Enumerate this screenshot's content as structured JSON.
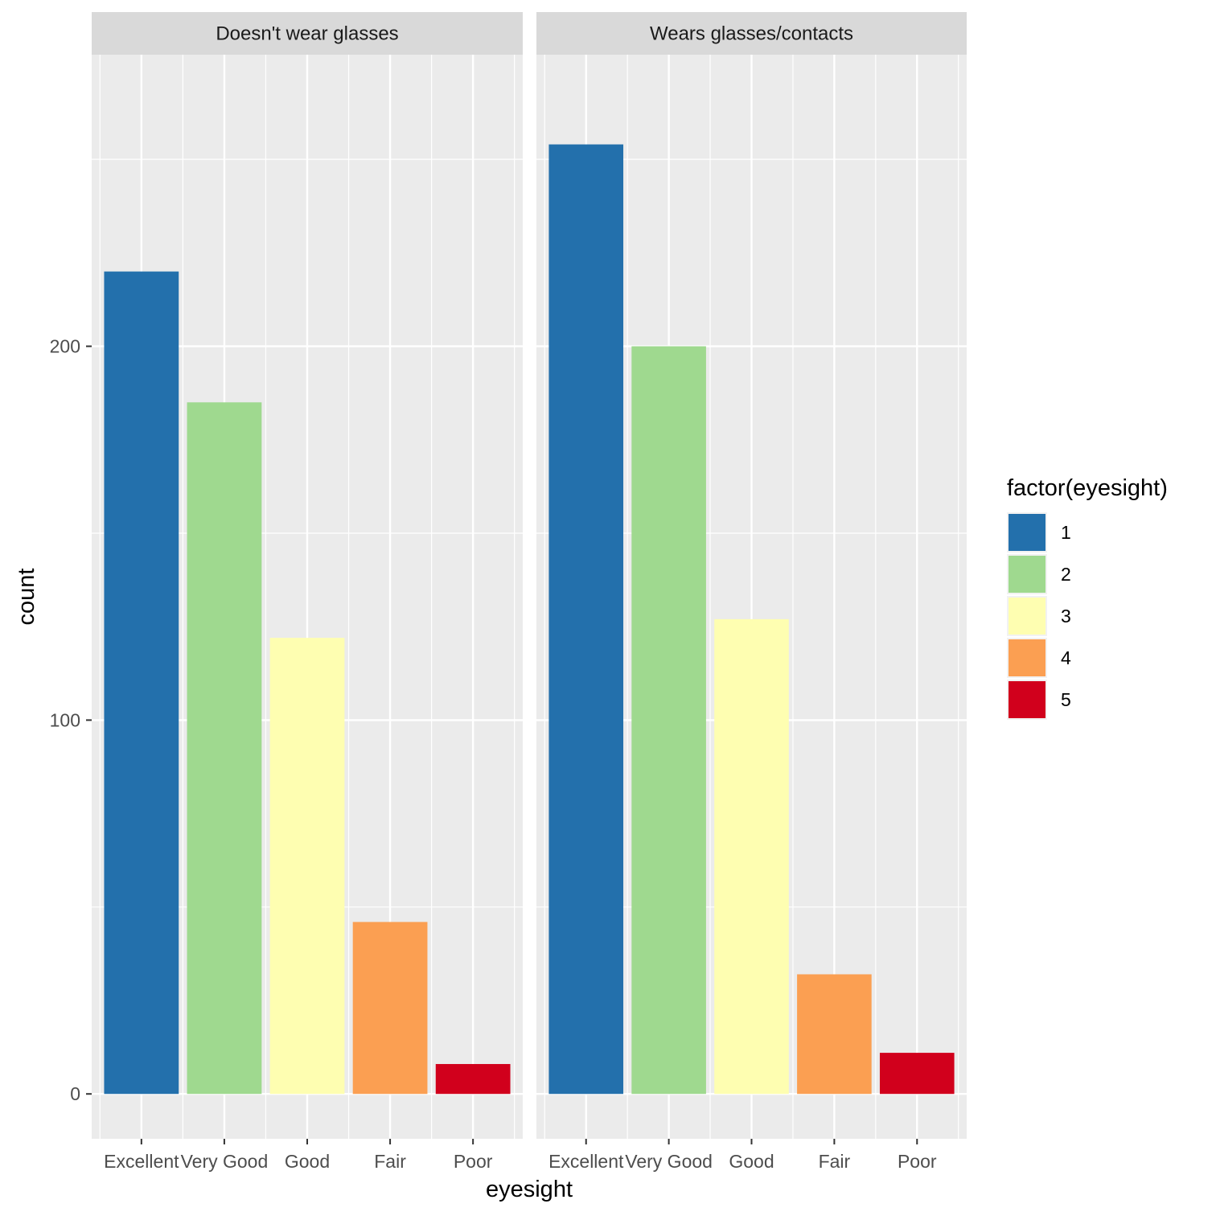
{
  "chart_data": {
    "type": "bar",
    "xlabel": "eyesight",
    "ylabel": "count",
    "categories": [
      "Excellent",
      "Very Good",
      "Good",
      "Fair",
      "Poor"
    ],
    "ylim": [
      -12,
      278
    ],
    "yticks": [
      0,
      100,
      200
    ],
    "colors": [
      "#2370AC",
      "#9FD98F",
      "#FEFEB1",
      "#FB9F52",
      "#D1001C"
    ],
    "panels": [
      {
        "title": "Doesn't wear glasses",
        "values": [
          220,
          185,
          122,
          46,
          8
        ]
      },
      {
        "title": "Wears glasses/contacts",
        "values": [
          254,
          200,
          127,
          32,
          11
        ]
      }
    ],
    "legend": {
      "title": "factor(eyesight)",
      "position": "right",
      "labels": [
        "1",
        "2",
        "3",
        "4",
        "5"
      ]
    }
  }
}
